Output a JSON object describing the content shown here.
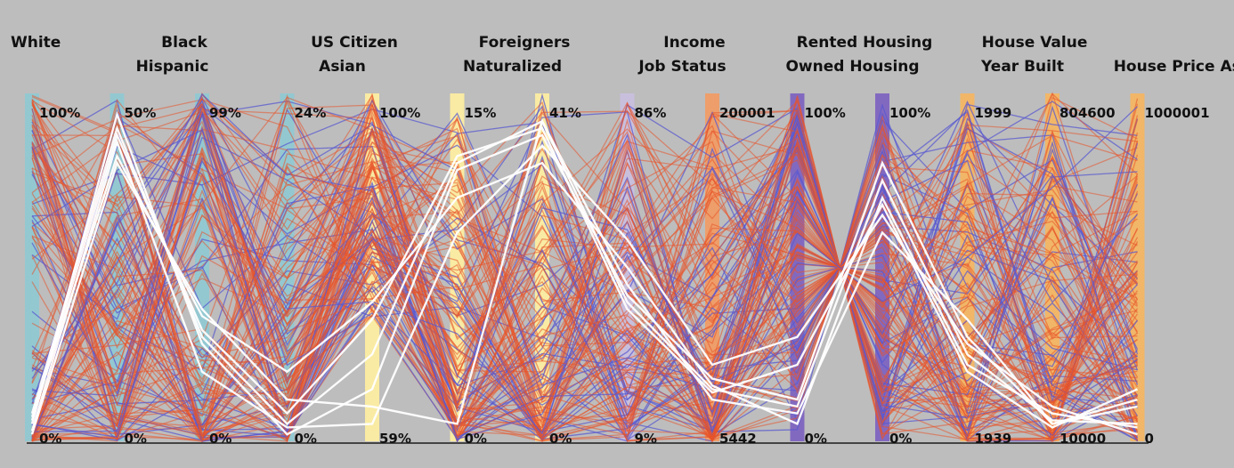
{
  "chart_data": {
    "type": "parallel-coordinates",
    "title": "",
    "axes": [
      {
        "name": "White",
        "max_label": "100%",
        "min_label": "0%",
        "color": "#8ec9d3"
      },
      {
        "name": "Hispanic",
        "max_label": "50%",
        "min_label": "0%",
        "color": "#8ec9d3"
      },
      {
        "name": "Black",
        "max_label": "99%",
        "min_label": "0%",
        "color": "#8ec9d3"
      },
      {
        "name": "Asian",
        "max_label": "24%",
        "min_label": "0%",
        "color": "#8ec9d3"
      },
      {
        "name": "US Citizen",
        "max_label": "100%",
        "min_label": "59%",
        "color": "#fff0a0"
      },
      {
        "name": "Naturalized",
        "max_label": "15%",
        "min_label": "0%",
        "color": "#fff0a0"
      },
      {
        "name": "Foreigners",
        "max_label": "41%",
        "min_label": "0%",
        "color": "#fff0a0"
      },
      {
        "name": "Job Status",
        "max_label": "86%",
        "min_label": "9%",
        "color": "#c9bfe0"
      },
      {
        "name": "Income",
        "max_label": "200001",
        "min_label": "5442",
        "color": "#f39a60"
      },
      {
        "name": "Owned Housing",
        "max_label": "100%",
        "min_label": "0%",
        "color": "#7b5fc0"
      },
      {
        "name": "Rented Housing",
        "max_label": "100%",
        "min_label": "0%",
        "color": "#7b5fc0"
      },
      {
        "name": "Year Built",
        "max_label": "1999",
        "min_label": "1939",
        "color": "#f6b55e"
      },
      {
        "name": "House Value",
        "max_label": "804600",
        "min_label": "10000",
        "color": "#f6b55e"
      },
      {
        "name": "House Price Asked",
        "max_label": "1000001",
        "min_label": "0",
        "color": "#f6b55e"
      }
    ],
    "highlighted_records": [
      [
        0.08,
        0.9,
        0.3,
        0.05,
        0.25,
        0.8,
        0.92,
        0.4,
        0.15,
        0.1,
        0.75,
        0.25,
        0.06,
        0.05
      ],
      [
        0.05,
        0.94,
        0.28,
        0.02,
        0.15,
        0.78,
        0.88,
        0.42,
        0.18,
        0.12,
        0.8,
        0.3,
        0.05,
        0.1
      ],
      [
        0.06,
        0.88,
        0.32,
        0.08,
        0.35,
        0.82,
        0.9,
        0.38,
        0.14,
        0.22,
        0.68,
        0.2,
        0.04,
        0.15
      ],
      [
        0.03,
        0.86,
        0.2,
        0.04,
        0.05,
        0.6,
        0.85,
        0.58,
        0.22,
        0.3,
        0.65,
        0.28,
        0.1,
        0.02
      ],
      [
        0.07,
        0.82,
        0.36,
        0.2,
        0.4,
        0.7,
        0.8,
        0.5,
        0.16,
        0.05,
        0.7,
        0.22,
        0.08,
        0.04
      ],
      [
        0.02,
        0.8,
        0.38,
        0.12,
        0.1,
        0.05,
        0.92,
        0.45,
        0.12,
        0.08,
        0.6,
        0.35,
        0.05,
        0.12
      ]
    ]
  }
}
